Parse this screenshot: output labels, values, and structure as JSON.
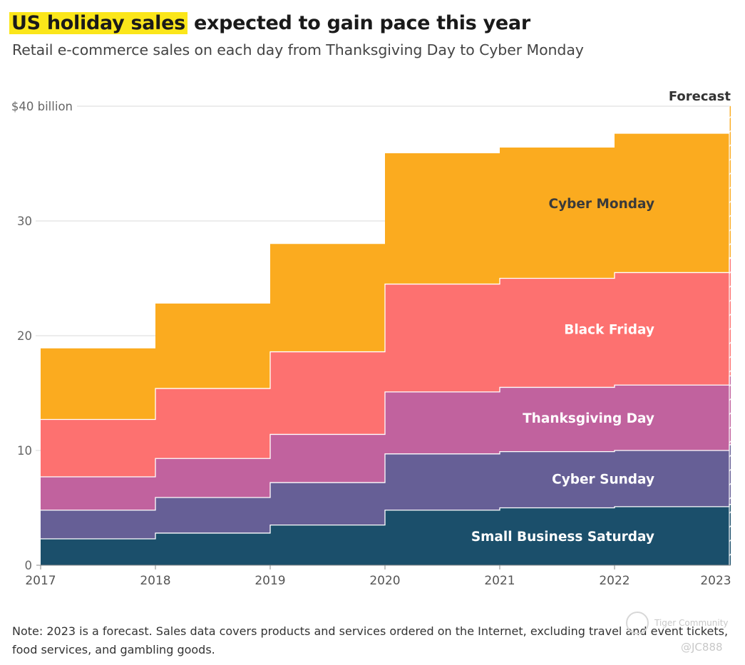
{
  "header": {
    "title_highlight": "US holiday sales",
    "title_rest": " expected to gain pace this year",
    "subtitle": "Retail e-commerce sales on each day from Thanksgiving Day to Cyber Monday"
  },
  "chart_data": {
    "type": "area",
    "title": "US holiday sales expected to gain pace this year",
    "subtitle": "Retail e-commerce sales on each day from Thanksgiving Day to Cyber Monday",
    "stacking": "stacked",
    "step": true,
    "categories": [
      "2017",
      "2018",
      "2019",
      "2020",
      "2021",
      "2022",
      "2023"
    ],
    "forecast_category": "2023",
    "forecast_label": "Forecast",
    "ylim": [
      0,
      40
    ],
    "yticks": [
      0,
      10,
      20,
      30,
      40
    ],
    "ytick_labels": [
      "0",
      "10",
      "20",
      "30",
      "$40 billion"
    ],
    "series": [
      {
        "name": "Small Business Saturday",
        "color": "#1b4f6b",
        "label_color": "#ffffff",
        "values": [
          2.3,
          2.8,
          3.5,
          4.8,
          5.0,
          5.1,
          5.3
        ]
      },
      {
        "name": "Cyber Sunday",
        "color": "#665f96",
        "label_color": "#ffffff",
        "values": [
          2.5,
          3.1,
          3.7,
          4.9,
          4.9,
          4.9,
          5.2
        ]
      },
      {
        "name": "Thanksgiving Day",
        "color": "#c1629e",
        "label_color": "#ffffff",
        "values": [
          2.9,
          3.4,
          4.2,
          5.4,
          5.6,
          5.7,
          6.0
        ]
      },
      {
        "name": "Black Friday",
        "color": "#fd7170",
        "label_color": "#ffffff",
        "values": [
          5.0,
          6.1,
          7.2,
          9.4,
          9.5,
          9.8,
          10.3
        ]
      },
      {
        "name": "Cyber Monday",
        "color": "#fbab1f",
        "label_color": "#3a3a3a",
        "values": [
          6.2,
          7.4,
          9.4,
          11.4,
          11.4,
          12.1,
          13.2
        ]
      }
    ]
  },
  "footer": {
    "note": "Note: 2023 is a forecast. Sales data covers products and services ordered on the Internet, excluding travel and event tickets, food services, and gambling goods."
  },
  "watermark": {
    "brand": "Tiger Community",
    "handle": "@JC888"
  }
}
